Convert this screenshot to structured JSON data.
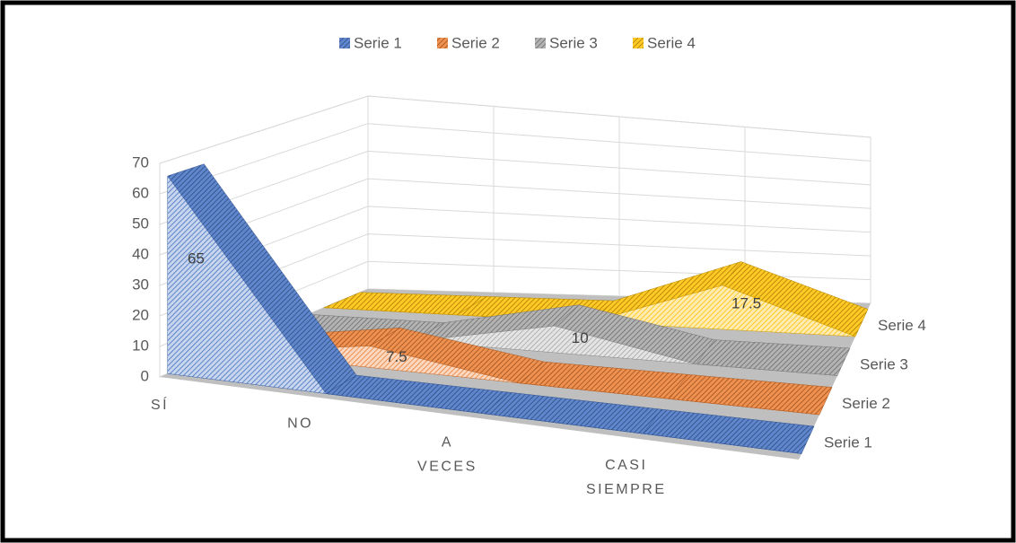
{
  "chart_data": {
    "type": "area3d",
    "categories": [
      "SÍ",
      "NO",
      "A VECES",
      "CASI SIEMPRE"
    ],
    "series": [
      {
        "name": "Serie 1",
        "color": "#4472c4",
        "values": [
          65,
          0,
          0,
          0
        ],
        "value_labels": [
          "65",
          null,
          null,
          null
        ]
      },
      {
        "name": "Serie 2",
        "color": "#ed7d31",
        "values": [
          0,
          7.5,
          0,
          0
        ],
        "value_labels": [
          null,
          "7.5",
          null,
          null
        ]
      },
      {
        "name": "Serie 3",
        "color": "#a5a5a5",
        "values": [
          0,
          0,
          10,
          0
        ],
        "value_labels": [
          null,
          null,
          "10",
          null
        ]
      },
      {
        "name": "Serie 4",
        "color": "#ffc000",
        "values": [
          0,
          0,
          0,
          17.5
        ],
        "value_labels": [
          null,
          null,
          null,
          "17.5"
        ]
      }
    ],
    "ylim": [
      0,
      70
    ],
    "yticks": [
      0,
      10,
      20,
      30,
      40,
      50,
      60,
      70
    ],
    "grid": true,
    "legend": "top"
  }
}
